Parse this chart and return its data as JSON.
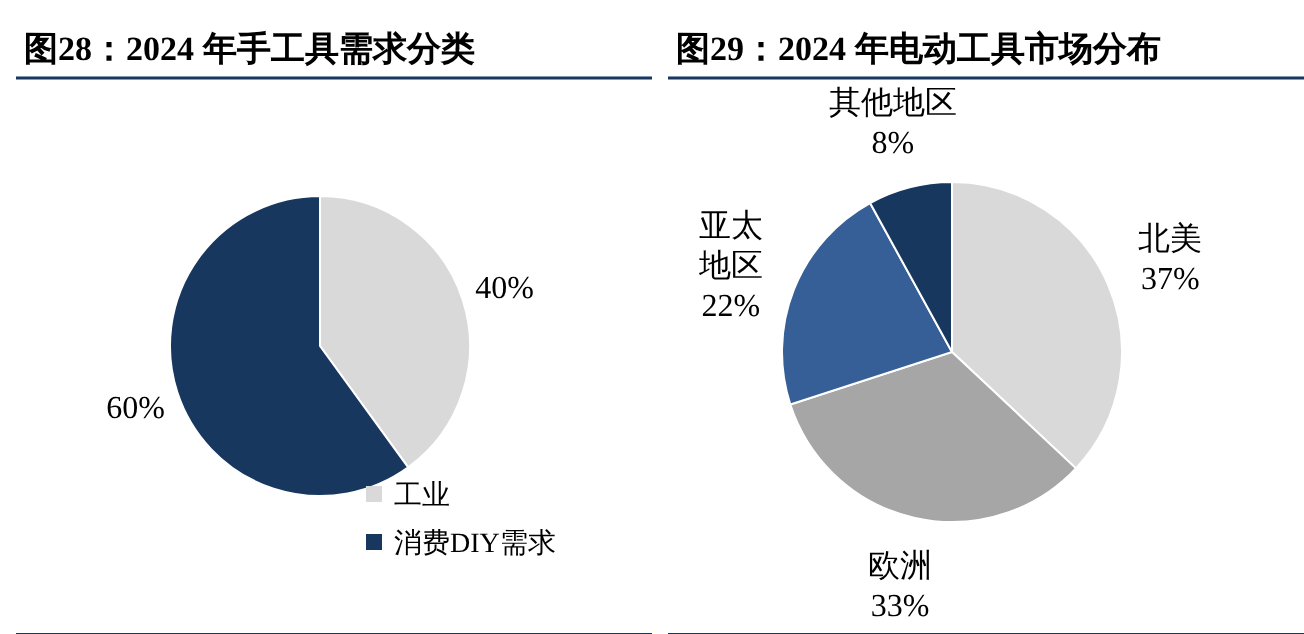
{
  "chart_data": [
    {
      "type": "pie",
      "title": "图28：2024 年手工具需求分类",
      "categories": [
        "工业",
        "消费DIY需求"
      ],
      "values": [
        40,
        60
      ],
      "value_labels": [
        "40%",
        "60%"
      ],
      "colors": [
        "#d9d9d9",
        "#17375e"
      ],
      "legend": "bottom right"
    },
    {
      "type": "pie",
      "title": "图29：2024 年电动工具市场分布",
      "categories": [
        "北美",
        "欧洲",
        "亚太地区",
        "其他地区"
      ],
      "values": [
        37,
        33,
        22,
        8
      ],
      "value_labels": [
        "37%",
        "33%",
        "22%",
        "8%"
      ],
      "colors": [
        "#d9d9d9",
        "#a6a6a6",
        "#355f96",
        "#17375e"
      ],
      "legend": false
    }
  ]
}
